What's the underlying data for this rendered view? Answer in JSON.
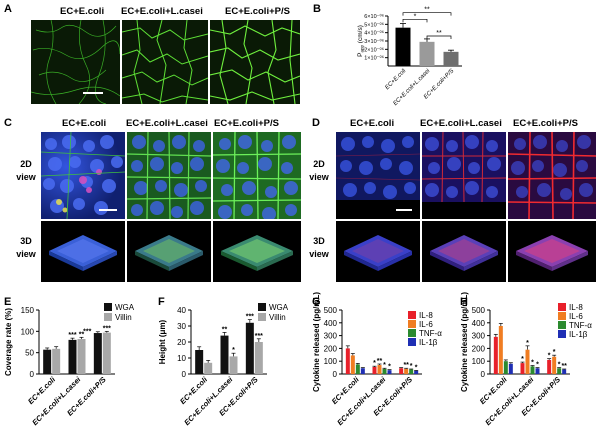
{
  "panel_labels": {
    "a": "A",
    "b": "B",
    "c": "C",
    "d": "D",
    "e": "E",
    "f": "F",
    "g": "G",
    "h": "H"
  },
  "groups": {
    "g1": "EC+E.coli",
    "g2": "EC+E.coli+L.casei",
    "g3": "EC+E.coli+P/S"
  },
  "row_labels": {
    "view2d_line1": "2D",
    "view2d_line2": "view",
    "view3d_line1": "3D",
    "view3d_line2": "view"
  },
  "colors": {
    "wga": "#111111",
    "villin": "#a8a8a8",
    "il8": "#e8202a",
    "il6": "#f07d22",
    "tnfa": "#2b8a2f",
    "il1b": "#1f2fb4",
    "panelB_g1": "#000000",
    "panelB_g2": "#9a9a9a",
    "panelB_g3": "#6f6f6f"
  },
  "chart_data": [
    {
      "panel": "B",
      "type": "bar",
      "categories": [
        "EC+E.coli",
        "EC+E.coli+L.casei",
        "EC+E.coli+P/S"
      ],
      "values": [
        4.6e-06,
        2.9e-06,
        1.7e-06
      ],
      "errors": [
        5e-07,
        3.5e-07,
        2e-07
      ],
      "ylabel": "P",
      "ylabel_sub": "app",
      "ylabel_unit": " (cm/s)",
      "ylim": [
        0,
        6e-06
      ],
      "ytick_labels": [
        "1×10⁻⁰⁶",
        "2×10⁻⁰⁶",
        "3×10⁻⁰⁶",
        "4×10⁻⁰⁶",
        "5×10⁻⁰⁶",
        "6×10⁻⁰⁶"
      ],
      "ytick_values": [
        1e-06,
        2e-06,
        3e-06,
        4e-06,
        5e-06,
        6e-06
      ],
      "significance": [
        {
          "from": 0,
          "to": 1,
          "label": "*",
          "level": 1
        },
        {
          "from": 0,
          "to": 2,
          "label": "**",
          "level": 2
        },
        {
          "from": 1,
          "to": 2,
          "label": "**",
          "level": 0
        }
      ]
    },
    {
      "panel": "E",
      "type": "bar",
      "categories": [
        "EC+E.coli",
        "EC+E.coli+L.casei",
        "EC+E.coli+P/S"
      ],
      "series": [
        {
          "name": "WGA",
          "values": [
            57,
            80,
            96
          ],
          "errors": [
            4,
            4,
            3
          ],
          "sig": [
            "",
            "***",
            ""
          ]
        },
        {
          "name": "Villin",
          "values": [
            59,
            82,
            97
          ],
          "errors": [
            5,
            4,
            3
          ],
          "sig": [
            "",
            "**",
            "***"
          ]
        }
      ],
      "sig_over_pair": [
        "",
        "",
        "***"
      ],
      "ylabel": "Coverage rate (%)",
      "ylim": [
        0,
        150
      ],
      "yticks": [
        0,
        50,
        100,
        150
      ]
    },
    {
      "panel": "F",
      "type": "bar",
      "categories": [
        "EC+E.coli",
        "EC+E.coli+L.casei",
        "EC+E.coli+P/S"
      ],
      "series": [
        {
          "name": "WGA",
          "values": [
            15,
            24,
            32
          ],
          "errors": [
            2,
            2,
            2
          ],
          "sig": [
            "",
            "**",
            "***"
          ]
        },
        {
          "name": "Villin",
          "values": [
            7,
            11,
            20
          ],
          "errors": [
            1.5,
            2,
            2
          ],
          "sig": [
            "",
            "*",
            "***"
          ]
        }
      ],
      "ylabel": "Height (μm)",
      "ylim": [
        0,
        40
      ],
      "yticks": [
        0,
        10,
        20,
        30,
        40
      ]
    },
    {
      "panel": "G",
      "type": "bar",
      "categories": [
        "EC+E.coli",
        "EC+E.coli+L.casei",
        "EC+E.coli+P/S"
      ],
      "series": [
        {
          "name": "IL-8",
          "values": [
            200,
            55,
            45
          ],
          "errors": [
            20,
            6,
            5
          ],
          "sig": [
            "",
            "*",
            ""
          ]
        },
        {
          "name": "IL-6",
          "values": [
            145,
            70,
            40
          ],
          "errors": [
            15,
            8,
            5
          ],
          "sig": [
            "",
            "**",
            "**"
          ]
        },
        {
          "name": "TNF-α",
          "values": [
            75,
            40,
            35
          ],
          "errors": [
            8,
            5,
            4
          ],
          "sig": [
            "",
            "*",
            "*"
          ]
        },
        {
          "name": "IL-1β",
          "values": [
            45,
            30,
            25
          ],
          "errors": [
            5,
            4,
            3
          ],
          "sig": [
            "",
            "*",
            "*"
          ]
        }
      ],
      "ylabel": "Cytokine released (pg/mL)",
      "ylim": [
        0,
        500
      ],
      "yticks": [
        0,
        100,
        200,
        300,
        400,
        500
      ]
    },
    {
      "panel": "H",
      "type": "bar",
      "categories": [
        "EC+E.coli",
        "EC+E.coli+L.casei",
        "EC+E.coli+P/S"
      ],
      "series": [
        {
          "name": "IL-8",
          "values": [
            290,
            85,
            110
          ],
          "errors": [
            20,
            8,
            10
          ],
          "sig": [
            "",
            "*",
            "*"
          ]
        },
        {
          "name": "IL-6",
          "values": [
            375,
            190,
            135
          ],
          "errors": [
            20,
            30,
            12
          ],
          "sig": [
            "",
            "*",
            "*"
          ]
        },
        {
          "name": "TNF-α",
          "values": [
            100,
            60,
            45
          ],
          "errors": [
            10,
            6,
            5
          ],
          "sig": [
            "",
            "*",
            "*"
          ]
        },
        {
          "name": "IL-1β",
          "values": [
            80,
            45,
            35
          ],
          "errors": [
            8,
            5,
            4
          ],
          "sig": [
            "",
            "*",
            "**"
          ]
        }
      ],
      "ylabel": "Cytokine released (pg/mL)",
      "ylim": [
        0,
        500
      ],
      "yticks": [
        0,
        100,
        200,
        300,
        400,
        500
      ]
    }
  ]
}
